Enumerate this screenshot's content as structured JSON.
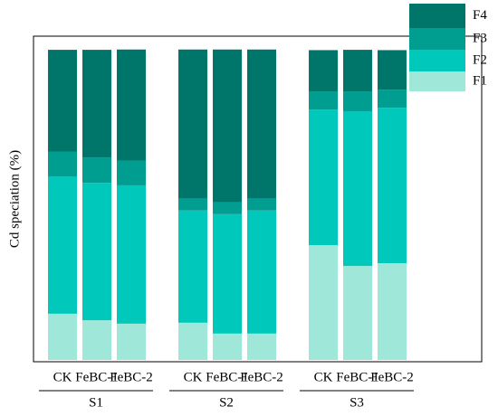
{
  "chart_data": {
    "type": "stacked-bar",
    "y_label": "Cd speciation (%)",
    "groups": [
      {
        "label": "S1",
        "categories": [
          "CK",
          "FeBC-1",
          "FeBC-2"
        ]
      },
      {
        "label": "S2",
        "categories": [
          "CK",
          "FeBC-1",
          "FeBC-2"
        ]
      },
      {
        "label": "S3",
        "categories": [
          "CK",
          "FeBC-1",
          "FeBC-2"
        ]
      }
    ],
    "series": [
      {
        "name": "F1",
        "color": "#9fe8d9",
        "values": [
          14.9,
          12.8,
          11.7,
          12.0,
          8.5,
          8.5,
          37.0,
          30.3,
          31.2
        ]
      },
      {
        "name": "F2",
        "color": "#00c8bb",
        "values": [
          44.3,
          44.3,
          44.6,
          36.2,
          38.5,
          39.7,
          43.7,
          49.9,
          50.1
        ]
      },
      {
        "name": "F3",
        "color": "#009e90",
        "values": [
          7.9,
          8.2,
          7.9,
          3.8,
          3.8,
          3.8,
          5.8,
          6.4,
          5.8
        ]
      },
      {
        "name": "F4",
        "color": "#00756a",
        "values": [
          32.9,
          34.7,
          35.9,
          48.1,
          49.3,
          48.1,
          13.4,
          13.4,
          12.8
        ]
      }
    ],
    "ylim": [
      0,
      104.4
    ],
    "legend": "top-right"
  }
}
